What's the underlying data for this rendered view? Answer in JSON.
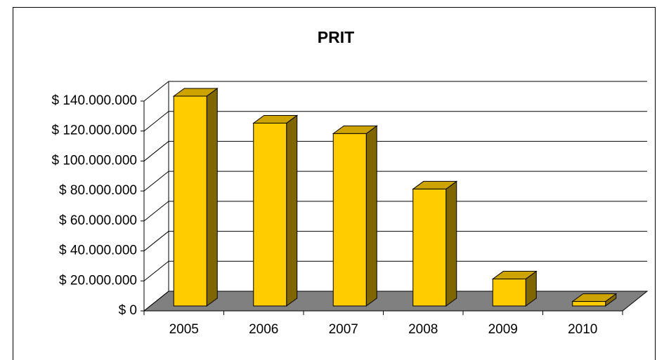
{
  "chart_data": {
    "type": "bar",
    "title": "PRIT",
    "categories": [
      "2005",
      "2006",
      "2007",
      "2008",
      "2009",
      "2010"
    ],
    "values": [
      140000000,
      122000000,
      115000000,
      78000000,
      18000000,
      3000000
    ],
    "color": "#ffcc00",
    "ylim": [
      0,
      140000000
    ],
    "yticks": [
      {
        "value": 0,
        "label": "$ 0"
      },
      {
        "value": 20000000,
        "label": "$ 20.000.000"
      },
      {
        "value": 40000000,
        "label": "$ 40.000.000"
      },
      {
        "value": 60000000,
        "label": "$ 60.000.000"
      },
      {
        "value": 80000000,
        "label": "$ 80.000.000"
      },
      {
        "value": 100000000,
        "label": "$ 100.000.000"
      },
      {
        "value": 120000000,
        "label": "$ 120.000.000"
      },
      {
        "value": 140000000,
        "label": "$ 140.000.000"
      }
    ],
    "grid": true
  }
}
